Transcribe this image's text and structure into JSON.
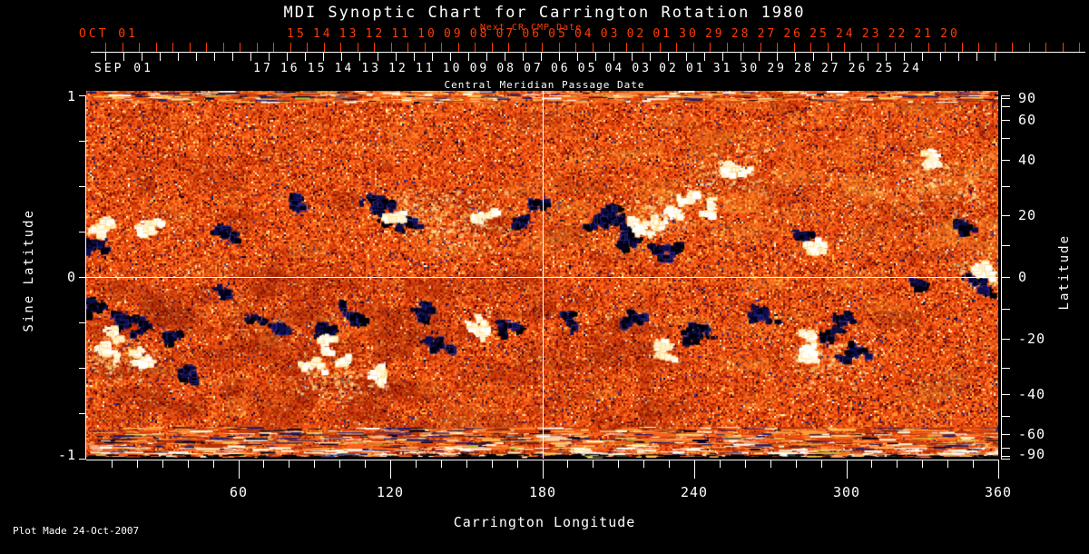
{
  "title": "MDI Synoptic Chart for Carrington Rotation 1980",
  "footer": "Plot Made 24-Oct-2007",
  "colors": {
    "background": "#000000",
    "foreground": "#ffffff",
    "next_cr_red": "#ff3c00",
    "crosshair": "#ffffff"
  },
  "top_axis": {
    "red_title": "Next CR CMP Date",
    "cmp_title": "Central Meridian Passage Date",
    "red_first_label": "OCT 01",
    "red_labels": [
      "15",
      "14",
      "13",
      "12",
      "11",
      "10",
      "09",
      "08",
      "07",
      "06",
      "05",
      "04",
      "03",
      "02",
      "01",
      "30",
      "29",
      "28",
      "27",
      "26",
      "25",
      "24",
      "23",
      "22",
      "21",
      "20"
    ],
    "cmp_first_label": "SEP 01",
    "cmp_labels": [
      "17",
      "16",
      "15",
      "14",
      "13",
      "12",
      "11",
      "10",
      "09",
      "08",
      "07",
      "06",
      "05",
      "04",
      "03",
      "02",
      "01",
      "31",
      "30",
      "29",
      "28",
      "27",
      "26",
      "25",
      "24"
    ]
  },
  "left_axis": {
    "title": "Sine Latitude",
    "labeled_ticks": [
      {
        "v": 1,
        "t": "1"
      },
      {
        "v": 0,
        "t": "0"
      },
      {
        "v": -1,
        "t": "-1"
      }
    ],
    "minor_step": 0.25
  },
  "right_axis": {
    "title": "Latitude",
    "labeled_ticks": [
      {
        "v": 90,
        "t": "90"
      },
      {
        "v": 60,
        "t": "60"
      },
      {
        "v": 40,
        "t": "40"
      },
      {
        "v": 20,
        "t": "20"
      },
      {
        "v": 0,
        "t": "0"
      },
      {
        "v": -20,
        "t": "-20"
      },
      {
        "v": -40,
        "t": "-40"
      },
      {
        "v": -60,
        "t": "-60"
      },
      {
        "v": -90,
        "t": "-90"
      }
    ],
    "minor_step_deg": 10
  },
  "bottom_axis": {
    "title": "Carrington Longitude",
    "major_ticks": [
      60,
      120,
      180,
      240,
      300,
      360
    ],
    "minor_step_deg": 10
  },
  "chart_data": {
    "type": "heatmap",
    "title": "MDI Synoptic Chart for Carrington Rotation 1980",
    "xlabel": "Carrington Longitude",
    "ylabel_left": "Sine Latitude",
    "ylabel_right": "Latitude",
    "xlim": [
      0,
      360
    ],
    "ylim_sine_latitude": [
      -1,
      1
    ],
    "x_major_ticks": [
      60,
      120,
      180,
      240,
      300,
      360
    ],
    "crosshair": {
      "longitude": 180,
      "sine_latitude": 0
    },
    "legend": "none",
    "grid": "crosshair-only",
    "description": "Full-disk magnetic field synoptic map: orange/red mixed-polarity noise background, dark (negative) and white (positive) active regions, streaky polar rows at top and bottom edges",
    "active_regions": [
      {
        "lon": 5,
        "sl": 0.26,
        "pol": "+",
        "size": 14
      },
      {
        "lon": 3,
        "sl": 0.18,
        "pol": "-",
        "size": 8
      },
      {
        "lon": 2,
        "sl": -0.15,
        "pol": "-",
        "size": 8
      },
      {
        "lon": 24,
        "sl": 0.3,
        "pol": "+",
        "size": 10
      },
      {
        "lon": 16,
        "sl": -0.22,
        "pol": "-",
        "size": 20
      },
      {
        "lon": 8,
        "sl": -0.38,
        "pol": "+",
        "size": 18
      },
      {
        "lon": 22,
        "sl": -0.45,
        "pol": "+",
        "size": 13
      },
      {
        "lon": 30,
        "sl": -0.3,
        "pol": "-",
        "size": 10
      },
      {
        "lon": 40,
        "sl": -0.5,
        "pol": "-",
        "size": 7
      },
      {
        "lon": 52,
        "sl": 0.28,
        "pol": "-",
        "size": 8
      },
      {
        "lon": 56,
        "sl": -0.1,
        "pol": "-",
        "size": 6
      },
      {
        "lon": 86,
        "sl": 0.42,
        "pol": "-",
        "size": 7
      },
      {
        "lon": 112,
        "sl": 0.42,
        "pol": "-",
        "size": 15
      },
      {
        "lon": 122,
        "sl": 0.33,
        "pol": "-",
        "size": 13
      },
      {
        "lon": 118,
        "sl": 0.36,
        "pol": "+",
        "size": 12
      },
      {
        "lon": 77,
        "sl": -0.28,
        "pol": "-",
        "size": 12
      },
      {
        "lon": 95,
        "sl": -0.3,
        "pol": "-",
        "size": 15
      },
      {
        "lon": 96,
        "sl": -0.47,
        "pol": "+",
        "size": 20
      },
      {
        "lon": 106,
        "sl": -0.22,
        "pol": "-",
        "size": 13
      },
      {
        "lon": 112,
        "sl": -0.52,
        "pol": "+",
        "size": 10
      },
      {
        "lon": 133,
        "sl": -0.17,
        "pol": "-",
        "size": 12
      },
      {
        "lon": 140,
        "sl": -0.35,
        "pol": "-",
        "size": 10
      },
      {
        "lon": 152,
        "sl": -0.3,
        "pol": "+",
        "size": 13
      },
      {
        "lon": 163,
        "sl": -0.25,
        "pol": "-",
        "size": 10
      },
      {
        "lon": 155,
        "sl": 0.35,
        "pol": "+",
        "size": 8
      },
      {
        "lon": 172,
        "sl": 0.3,
        "pol": "-",
        "size": 7
      },
      {
        "lon": 178,
        "sl": 0.42,
        "pol": "-",
        "size": 5
      },
      {
        "lon": 187,
        "sl": -0.2,
        "pol": "-",
        "size": 6
      },
      {
        "lon": 205,
        "sl": 0.33,
        "pol": "-",
        "size": 24
      },
      {
        "lon": 212,
        "sl": 0.22,
        "pol": "-",
        "size": 16
      },
      {
        "lon": 224,
        "sl": 0.3,
        "pol": "+",
        "size": 19
      },
      {
        "lon": 233,
        "sl": 0.17,
        "pol": "-",
        "size": 14
      },
      {
        "lon": 242,
        "sl": 0.45,
        "pol": "+",
        "size": 13
      },
      {
        "lon": 253,
        "sl": 0.62,
        "pol": "+",
        "size": 11
      },
      {
        "lon": 215,
        "sl": -0.2,
        "pol": "-",
        "size": 12
      },
      {
        "lon": 236,
        "sl": -0.28,
        "pol": "-",
        "size": 13
      },
      {
        "lon": 228,
        "sl": -0.4,
        "pol": "+",
        "size": 8
      },
      {
        "lon": 263,
        "sl": -0.18,
        "pol": "-",
        "size": 10
      },
      {
        "lon": 283,
        "sl": 0.22,
        "pol": "-",
        "size": 6
      },
      {
        "lon": 287,
        "sl": 0.16,
        "pol": "+",
        "size": 5
      },
      {
        "lon": 283,
        "sl": -0.36,
        "pol": "+",
        "size": 19
      },
      {
        "lon": 295,
        "sl": -0.28,
        "pol": "-",
        "size": 15
      },
      {
        "lon": 303,
        "sl": -0.42,
        "pol": "-",
        "size": 9
      },
      {
        "lon": 327,
        "sl": -0.05,
        "pol": "-",
        "size": 6
      },
      {
        "lon": 333,
        "sl": 0.64,
        "pol": "+",
        "size": 11
      },
      {
        "lon": 345,
        "sl": 0.3,
        "pol": "-",
        "size": 6
      },
      {
        "lon": 352,
        "sl": 0.04,
        "pol": "+",
        "size": 10
      },
      {
        "lon": 356,
        "sl": -0.06,
        "pol": "-",
        "size": 7
      }
    ],
    "pale_zones": [
      {
        "lon": 150,
        "sl": 0.28,
        "size": 45
      },
      {
        "lon": 128,
        "sl": 0.38,
        "size": 30
      },
      {
        "lon": 250,
        "sl": 0.55,
        "size": 38
      },
      {
        "lon": 338,
        "sl": 0.5,
        "size": 45
      },
      {
        "lon": 98,
        "sl": -0.58,
        "size": 35
      },
      {
        "lon": 292,
        "sl": -0.45,
        "size": 40
      },
      {
        "lon": 10,
        "sl": -0.45,
        "size": 35
      },
      {
        "lon": 228,
        "sl": 0.35,
        "size": 30
      },
      {
        "lon": 355,
        "sl": 0.02,
        "size": 25
      }
    ],
    "noise_palette": [
      {
        "c": "#7c1000",
        "w": 5
      },
      {
        "c": "#a82200",
        "w": 10
      },
      {
        "c": "#cc3804",
        "w": 16
      },
      {
        "c": "#e64a10",
        "w": 22
      },
      {
        "c": "#f85a18",
        "w": 20
      },
      {
        "c": "#ff7322",
        "w": 12
      },
      {
        "c": "#ff9434",
        "w": 6
      },
      {
        "c": "#ffc352",
        "w": 2.5
      },
      {
        "c": "#fff6cf",
        "w": 1.3
      },
      {
        "c": "#2a2a8c",
        "w": 1.6
      },
      {
        "c": "#05052e",
        "w": 1.2
      }
    ],
    "streak_palette": [
      {
        "c": "#d84008",
        "w": 14
      },
      {
        "c": "#ff6018",
        "w": 14
      },
      {
        "c": "#ffa040",
        "w": 10
      },
      {
        "c": "#ffd060",
        "w": 8
      },
      {
        "c": "#fff8d8",
        "w": 8
      },
      {
        "c": "#ffffff",
        "w": 4
      },
      {
        "c": "#1a1a70",
        "w": 8
      },
      {
        "c": "#00001e",
        "w": 6
      },
      {
        "c": "#b03008",
        "w": 10
      },
      {
        "c": "#ff8028",
        "w": 10
      },
      {
        "c": "#b0c830",
        "w": 1
      }
    ],
    "positive_colors": [
      "#ffffff",
      "#fffdf0",
      "#fff3cd"
    ],
    "positive_fringe": "#ffd570",
    "negative_colors": [
      "#00001a",
      "#000000",
      "#0d0d4d"
    ],
    "negative_fringe": "#2d2d96"
  }
}
